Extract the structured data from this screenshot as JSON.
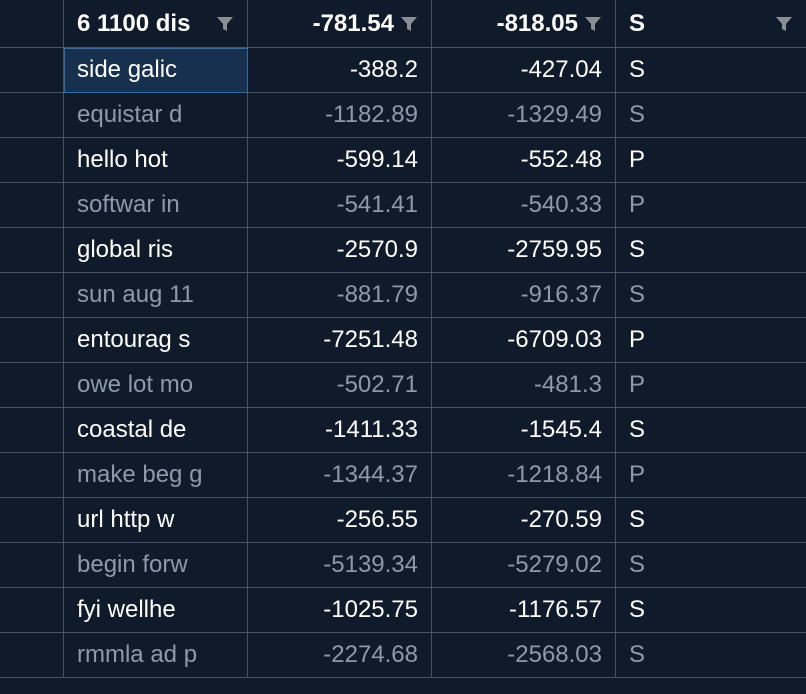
{
  "grid": {
    "columns": [
      {
        "label": "",
        "filter": false
      },
      {
        "label": "6 1100 dis",
        "filter": true
      },
      {
        "label": "-781.54",
        "filter": true
      },
      {
        "label": "-818.05",
        "filter": true
      },
      {
        "label": "S",
        "filter": true
      }
    ],
    "rows": [
      {
        "text": "side galic",
        "a": "-388.2",
        "b": "-427.04",
        "c": "S",
        "muted": false,
        "selected": true
      },
      {
        "text": "equistar d",
        "a": "-1182.89",
        "b": "-1329.49",
        "c": "S",
        "muted": true,
        "selected": false
      },
      {
        "text": "hello hot",
        "a": "-599.14",
        "b": "-552.48",
        "c": "P",
        "muted": false,
        "selected": false
      },
      {
        "text": "softwar in",
        "a": "-541.41",
        "b": "-540.33",
        "c": "P",
        "muted": true,
        "selected": false
      },
      {
        "text": "global ris",
        "a": "-2570.9",
        "b": "-2759.95",
        "c": "S",
        "muted": false,
        "selected": false
      },
      {
        "text": "sun aug 11",
        "a": "-881.79",
        "b": "-916.37",
        "c": "S",
        "muted": true,
        "selected": false
      },
      {
        "text": "entourag s",
        "a": "-7251.48",
        "b": "-6709.03",
        "c": "P",
        "muted": false,
        "selected": false
      },
      {
        "text": "owe lot mo",
        "a": "-502.71",
        "b": "-481.3",
        "c": "P",
        "muted": true,
        "selected": false
      },
      {
        "text": "coastal de",
        "a": "-1411.33",
        "b": "-1545.4",
        "c": "S",
        "muted": false,
        "selected": false
      },
      {
        "text": "make beg g",
        "a": "-1344.37",
        "b": "-1218.84",
        "c": "P",
        "muted": true,
        "selected": false
      },
      {
        "text": "url http w",
        "a": "-256.55",
        "b": "-270.59",
        "c": "S",
        "muted": false,
        "selected": false
      },
      {
        "text": "begin forw",
        "a": "-5139.34",
        "b": "-5279.02",
        "c": "S",
        "muted": true,
        "selected": false
      },
      {
        "text": "fyi wellhe",
        "a": "-1025.75",
        "b": "-1176.57",
        "c": "S",
        "muted": false,
        "selected": false
      },
      {
        "text": "rmmla ad p",
        "a": "-2274.68",
        "b": "-2568.03",
        "c": "S",
        "muted": true,
        "selected": false
      }
    ]
  },
  "icons": {
    "filter": "filter-icon"
  },
  "colors": {
    "background": "#0f1a2a",
    "gridline": "#4a5260",
    "text": "#ffffff",
    "muted_text": "#8d9aaa",
    "selected_cell": "#17304d",
    "icon": "#8a8f96"
  }
}
